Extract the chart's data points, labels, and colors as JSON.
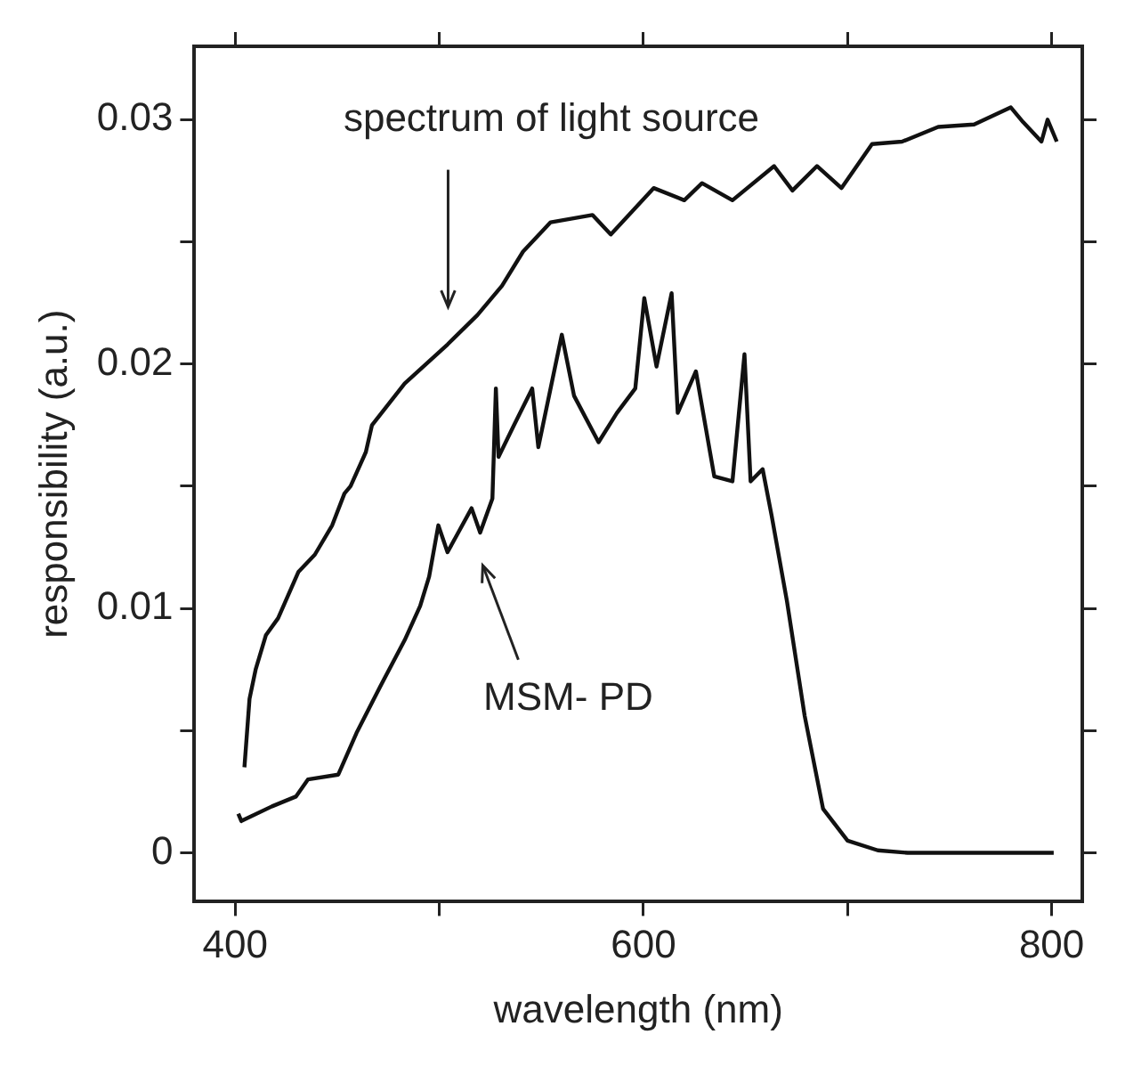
{
  "chart_data": {
    "type": "line",
    "xlabel": "wavelength (nm)",
    "ylabel": "responsibility (a.u.)",
    "xlim": [
      380,
      815
    ],
    "ylim": [
      -0.002,
      0.033
    ],
    "xticks": [
      400,
      {
        "value": 500,
        "label": null
      },
      600,
      {
        "value": 700,
        "label": null
      },
      800
    ],
    "yticks": [
      0,
      {
        "value": 0.005,
        "label": null
      },
      0.01,
      {
        "value": 0.015,
        "label": null
      },
      0.02,
      {
        "value": 0.025,
        "label": null
      },
      0.03
    ],
    "grid": false,
    "legend": false,
    "marker": "none",
    "line_style": "solid",
    "series": [
      {
        "color": "#111111",
        "x": [
          404.5,
          407,
          410,
          415,
          421,
          431,
          439,
          447.5,
          453.5,
          456.5,
          464,
          467,
          483,
          504,
          518.6,
          530.7,
          541,
          554.5,
          575,
          584,
          605,
          620,
          628.7,
          643.6,
          664,
          673,
          685,
          697,
          712,
          726.7,
          744.4,
          762,
          780,
          786,
          795,
          798,
          802.5
        ],
        "values": [
          0.0035,
          0.0063,
          0.0075,
          0.0089,
          0.0096,
          0.0115,
          0.0122,
          0.0134,
          0.0147,
          0.015,
          0.0164,
          0.0175,
          0.0192,
          0.0208,
          0.022,
          0.0232,
          0.0246,
          0.0258,
          0.0261,
          0.0253,
          0.0272,
          0.0267,
          0.0274,
          0.0267,
          0.0281,
          0.0271,
          0.0281,
          0.0272,
          0.029,
          0.0291,
          0.0297,
          0.0298,
          0.0305,
          0.0299,
          0.0291,
          0.03,
          0.0291
        ]
      },
      {
        "color": "#111111",
        "x": [
          401.5,
          403,
          418,
          429.7,
          435.6,
          450.5,
          459.4,
          471,
          483,
          490.6,
          495,
          499.5,
          504,
          515.8,
          520,
          526,
          527.7,
          529,
          536.6,
          545.5,
          548.5,
          560,
          566,
          578,
          587,
          596,
          600.4,
          606.4,
          613.8,
          616.8,
          625.7,
          634.7,
          643.6,
          649.5,
          652.5,
          658.4,
          662.8,
          670.3,
          679,
          688,
          700,
          714.8,
          729.5,
          801
        ],
        "values": [
          0.0016,
          0.0013,
          0.0019,
          0.0023,
          0.003,
          0.0032,
          0.0049,
          0.0068,
          0.0087,
          0.0101,
          0.0113,
          0.0134,
          0.0123,
          0.0141,
          0.0131,
          0.0145,
          0.019,
          0.0162,
          0.0175,
          0.019,
          0.0166,
          0.0212,
          0.0187,
          0.0168,
          0.018,
          0.019,
          0.0227,
          0.0199,
          0.0229,
          0.018,
          0.0197,
          0.0154,
          0.0152,
          0.0204,
          0.0152,
          0.0157,
          0.0138,
          0.0103,
          0.0056,
          0.0018,
          0.0005,
          0.0001,
          0,
          0
        ]
      }
    ],
    "annotations": [
      "spectrum of light source",
      "MSM- PD"
    ]
  }
}
